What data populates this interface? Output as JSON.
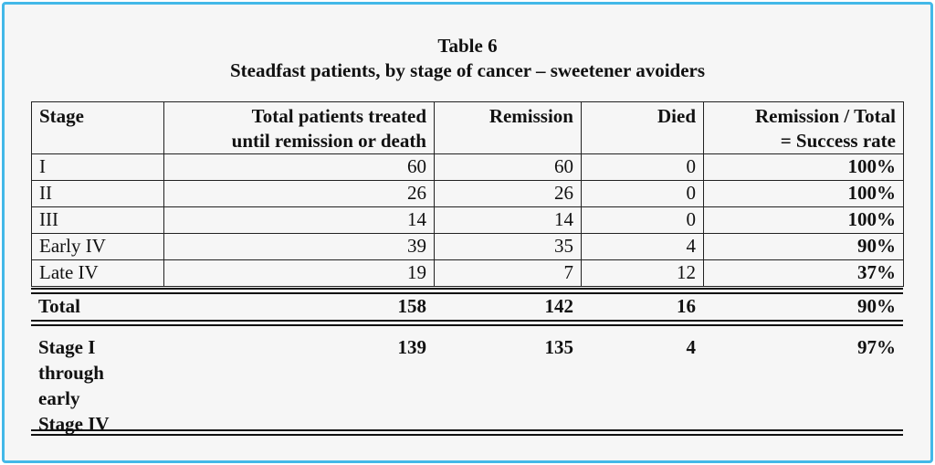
{
  "title": "Table 6",
  "subtitle": "Steadfast patients, by stage of cancer – sweetener avoiders",
  "headers": {
    "stage": "Stage",
    "total_line1": "Total patients treated",
    "total_line2": "until remission or death",
    "remission": "Remission",
    "died": "Died",
    "rate_line1": "Remission / Total",
    "rate_line2": "= Success rate"
  },
  "rows": [
    {
      "stage": "I",
      "total": "60",
      "remission": "60",
      "died": "0",
      "rate": "100%"
    },
    {
      "stage": "II",
      "total": "26",
      "remission": "26",
      "died": "0",
      "rate": "100%"
    },
    {
      "stage": "III",
      "total": "14",
      "remission": "14",
      "died": "0",
      "rate": "100%"
    },
    {
      "stage": "Early IV",
      "total": "39",
      "remission": "35",
      "died": "4",
      "rate": "90%"
    },
    {
      "stage": "Late IV",
      "total": "19",
      "remission": "7",
      "died": "12",
      "rate": "37%"
    }
  ],
  "total_row": {
    "stage": "Total",
    "total": "158",
    "remission": "142",
    "died": "16",
    "rate": "90%"
  },
  "subtotal_row": {
    "stage_lines": [
      "Stage I",
      "through",
      "early",
      "Stage IV"
    ],
    "total": "139",
    "remission": "135",
    "died": "4",
    "rate": "97%"
  },
  "colors": {
    "frame_border": "#43b8e8",
    "background": "#f6f6f6",
    "text": "#111111"
  }
}
